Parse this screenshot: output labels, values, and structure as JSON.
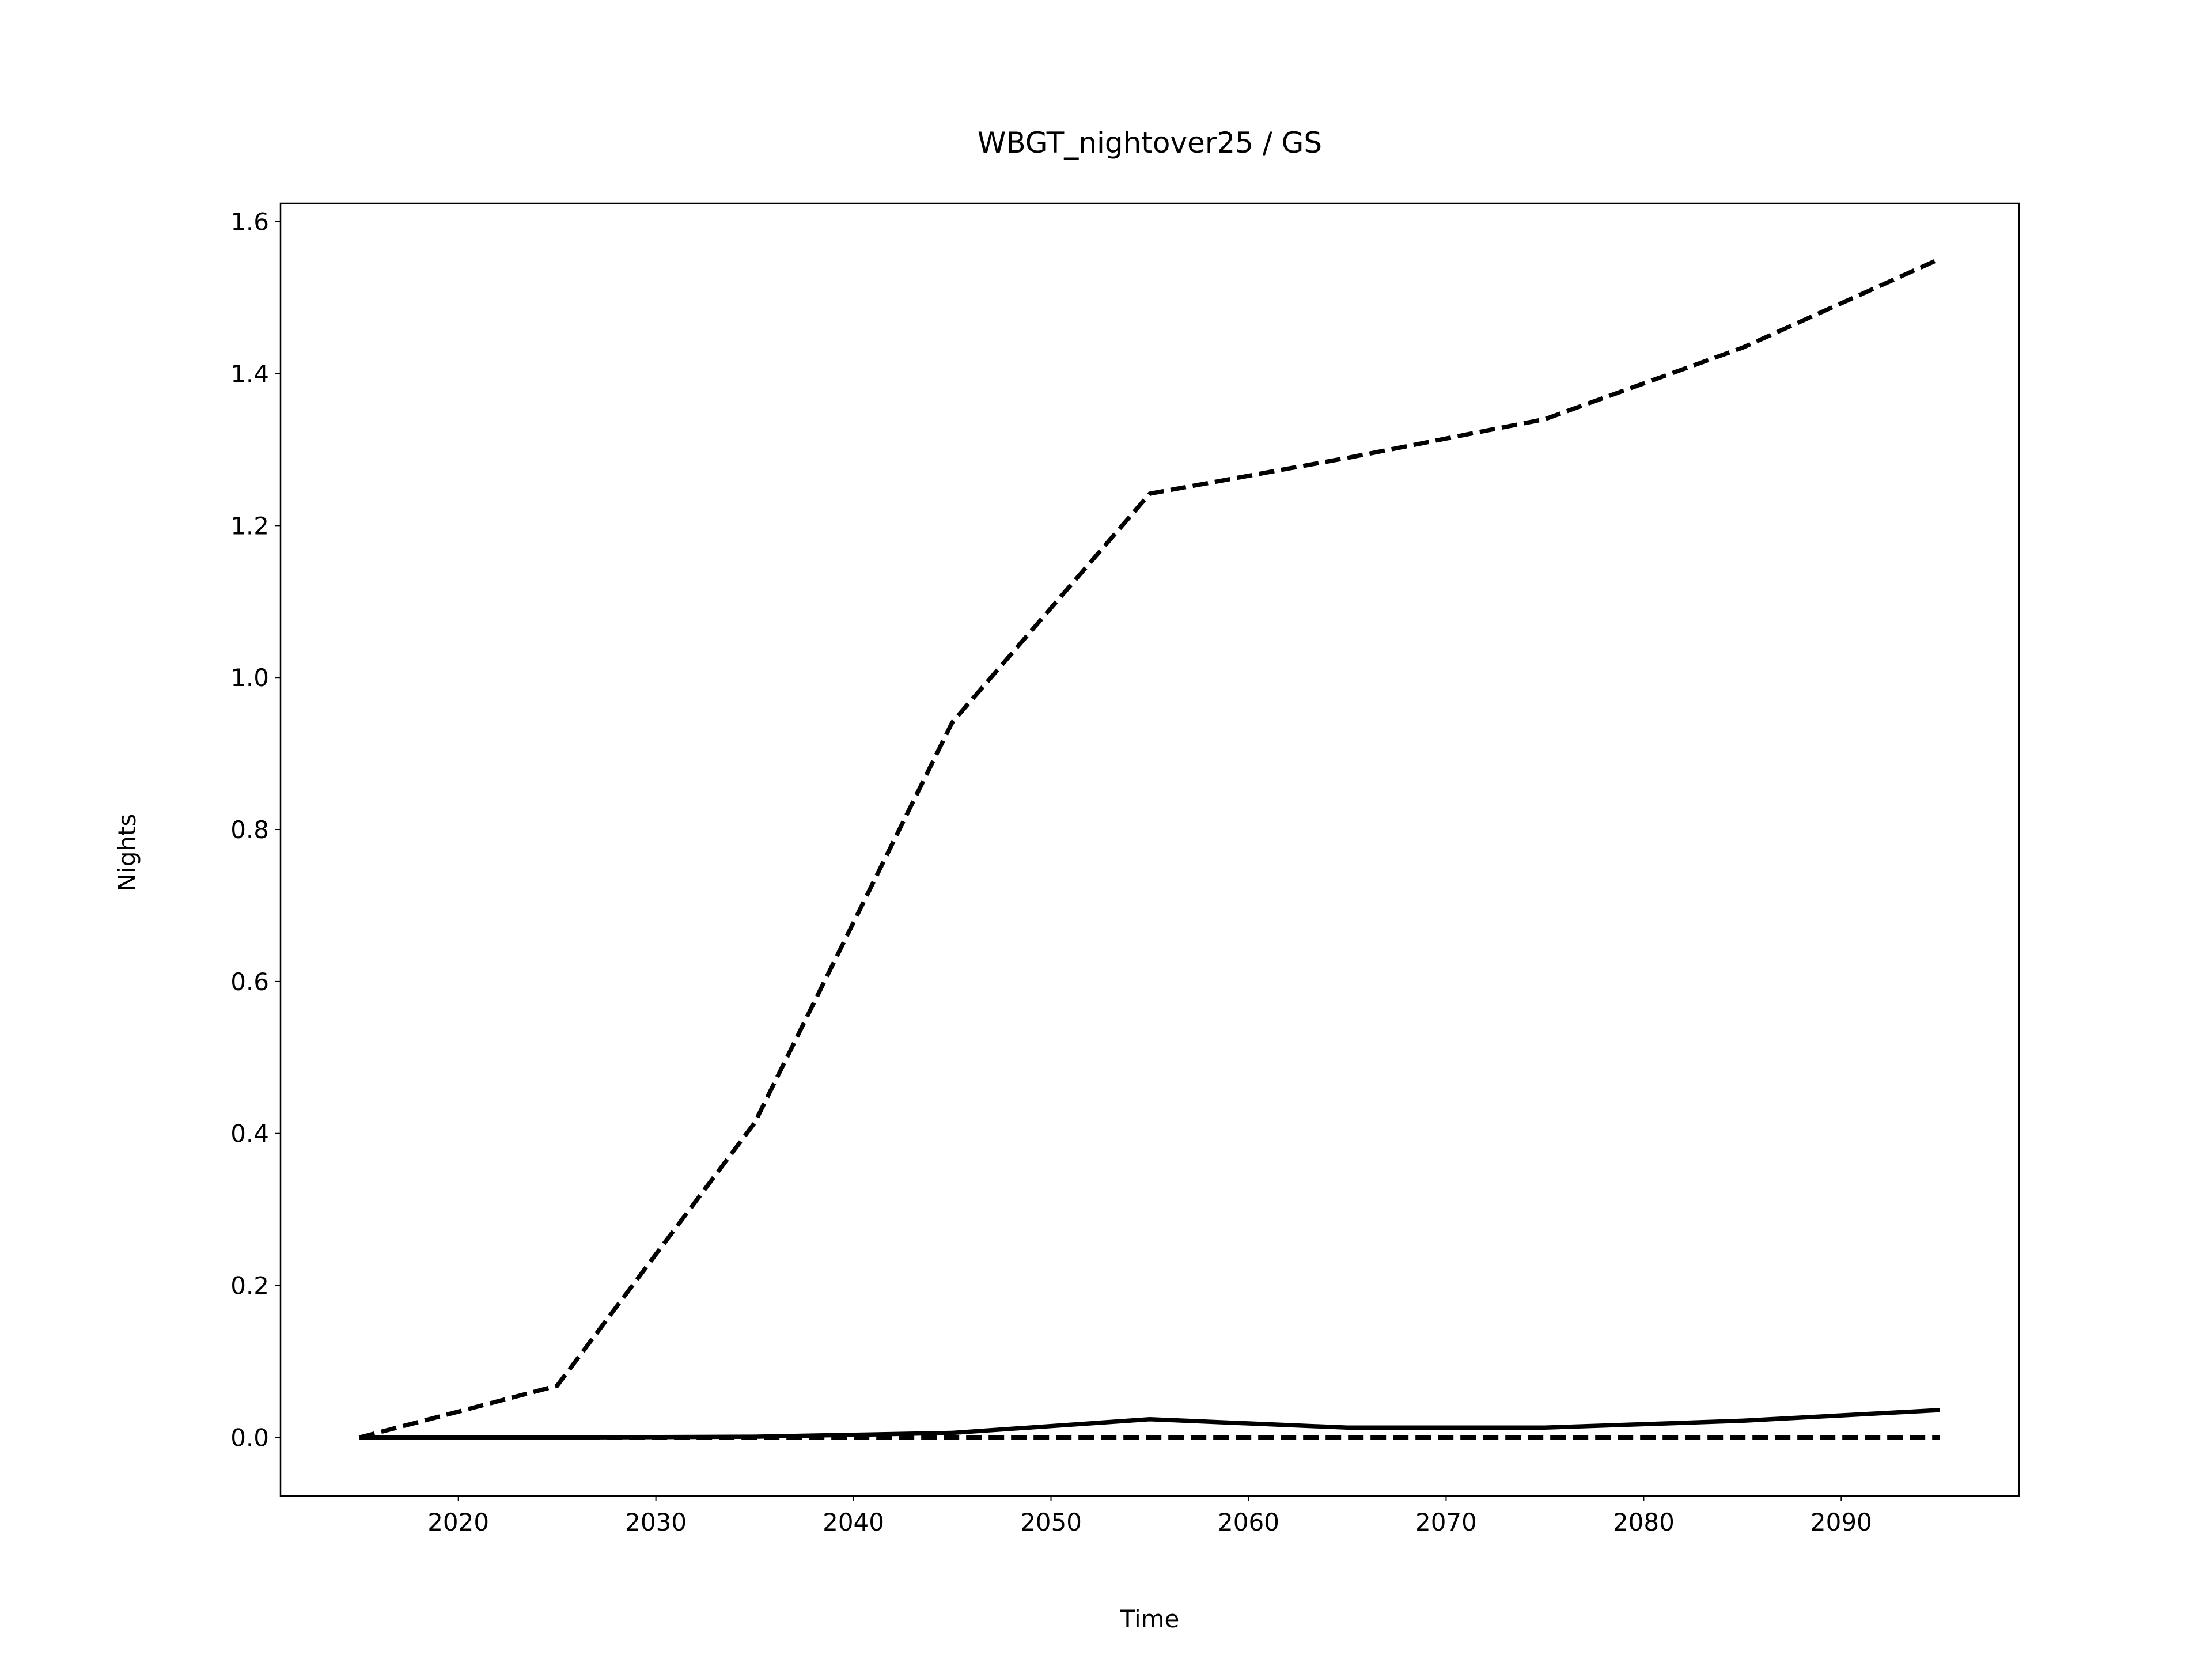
{
  "chart_data": {
    "type": "line",
    "title": "WBGT_nightover25 / GS",
    "x_label": "Time",
    "y_label": "Nights",
    "x": [
      2015,
      2025,
      2035,
      2045,
      2055,
      2065,
      2075,
      2085,
      2095
    ],
    "series": [
      {
        "color": "#000000",
        "dashed": true,
        "values": [
          0,
          0.068,
          0.414,
          0.941,
          1.242,
          1.289,
          1.34,
          1.434,
          1.551
        ]
      },
      {
        "color": "#000000",
        "dashed": false,
        "values": [
          0,
          0,
          0.001,
          0.006,
          0.024,
          0.013,
          0.013,
          0.022,
          0.036
        ]
      },
      {
        "color": "#000000",
        "dashed": true,
        "values": [
          0,
          0,
          0,
          0,
          0,
          0,
          0,
          0,
          0
        ]
      }
    ],
    "xlim": [
      2011,
      2099
    ],
    "ylim": [
      -0.077,
      1.624
    ],
    "xticks": [
      2020,
      2030,
      2040,
      2050,
      2060,
      2070,
      2080,
      2090
    ],
    "yticks": [
      {
        "value": 0,
        "label": "0.0"
      },
      0.2,
      0.4,
      0.6,
      0.8,
      {
        "value": 1,
        "label": "1.0"
      },
      1.2,
      1.4,
      1.6
    ],
    "grid": false
  }
}
